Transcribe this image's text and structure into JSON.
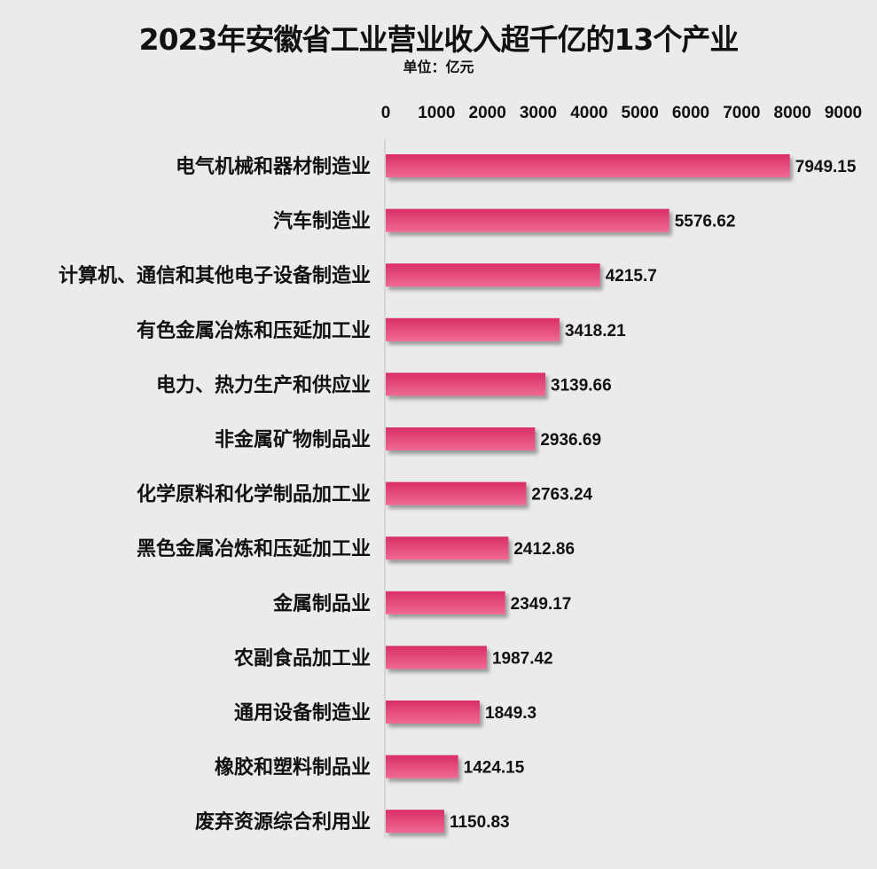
{
  "chart_data": {
    "type": "bar",
    "orientation": "horizontal",
    "title": "2023年安徽省工业营业收入超千亿的13个产业",
    "subtitle": "单位：亿元",
    "categories": [
      "电气机械和器材制造业",
      "汽车制造业",
      "计算机、通信和其他电子设备制造业",
      "有色金属冶炼和压延加工业",
      "电力、热力生产和供应业",
      "非金属矿物制品业",
      "化学原料和化学制品加工业",
      "黑色金属冶炼和压延加工业",
      "金属制品业",
      "农副食品加工业",
      "通用设备制造业",
      "橡胶和塑料制品业",
      "废弃资源综合利用业"
    ],
    "values": [
      7949.15,
      5576.62,
      4215.7,
      3418.21,
      3139.66,
      2936.69,
      2763.24,
      2412.86,
      2349.17,
      1987.42,
      1849.3,
      1424.15,
      1150.83
    ],
    "xlim": [
      0,
      9000
    ],
    "ticks": [
      "0",
      "1000",
      "2000",
      "3000",
      "4000",
      "5000",
      "6000",
      "7000",
      "8000",
      "9000"
    ],
    "axis_position": "top",
    "grid": false,
    "legend": "none",
    "colors": {
      "bar_top": "#d92f66",
      "bar_bottom": "#f06a93",
      "background": "#ebebeb"
    }
  }
}
